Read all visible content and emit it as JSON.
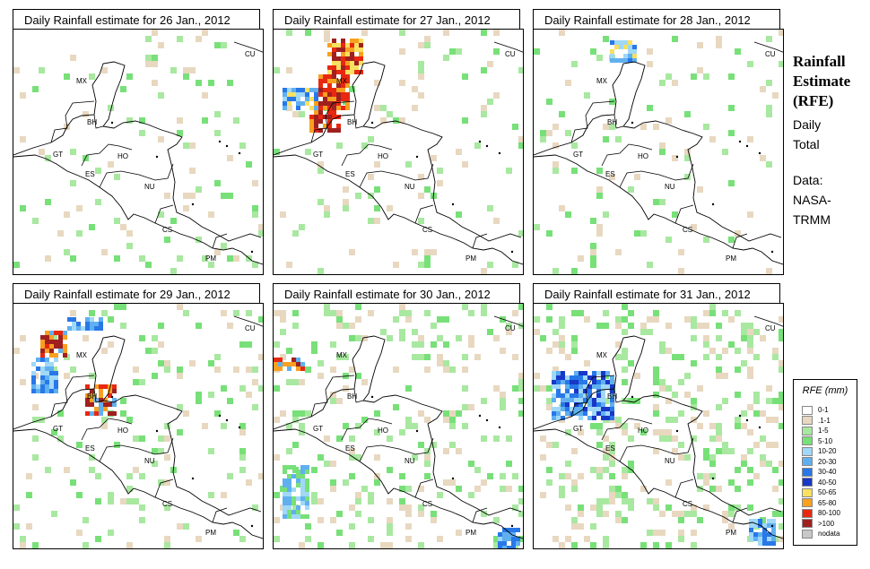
{
  "panels": [
    {
      "title": "Daily Rainfall estimate for  26 Jan., 2012",
      "key": "p26"
    },
    {
      "title": "Daily Rainfall estimate for  27 Jan., 2012",
      "key": "p27"
    },
    {
      "title": "Daily Rainfall estimate for  28 Jan., 2012",
      "key": "p28"
    },
    {
      "title": "Daily Rainfall estimate for  29 Jan., 2012",
      "key": "p29"
    },
    {
      "title": "Daily Rainfall estimate for  30 Jan., 2012",
      "key": "p30"
    },
    {
      "title": "Daily Rainfall estimate for  31 Jan., 2012",
      "key": "p31"
    }
  ],
  "country_labels": [
    "CU",
    "MX",
    "BH",
    "GT",
    "HO",
    "ES",
    "NU",
    "CS",
    "PM"
  ],
  "side": {
    "title_line1": "Rainfall",
    "title_line2": "Estimate",
    "title_line3": "(RFE)",
    "sub_line1": "Daily",
    "sub_line2": "Total",
    "data_line1": "Data:",
    "data_line2": "NASA-",
    "data_line3": "TRMM"
  },
  "legend": {
    "title": "RFE (mm)",
    "items": [
      {
        "label": "0-1",
        "color": "#ffffff"
      },
      {
        "label": ".1-1",
        "color": "#e8d8c0"
      },
      {
        "label": "1-5",
        "color": "#a8e8a0"
      },
      {
        "label": "5-10",
        "color": "#78e078"
      },
      {
        "label": "10-20",
        "color": "#a0d8f8"
      },
      {
        "label": "20-30",
        "color": "#60b0f0"
      },
      {
        "label": "30-40",
        "color": "#2878e8"
      },
      {
        "label": "40-50",
        "color": "#1838c8"
      },
      {
        "label": "50-65",
        "color": "#f8e060"
      },
      {
        "label": "65-80",
        "color": "#f8a020"
      },
      {
        "label": "80-100",
        "color": "#e82810"
      },
      {
        "label": ">100",
        "color": "#a02020"
      },
      {
        "label": "nodata",
        "color": "#c8c8c8"
      }
    ]
  }
}
